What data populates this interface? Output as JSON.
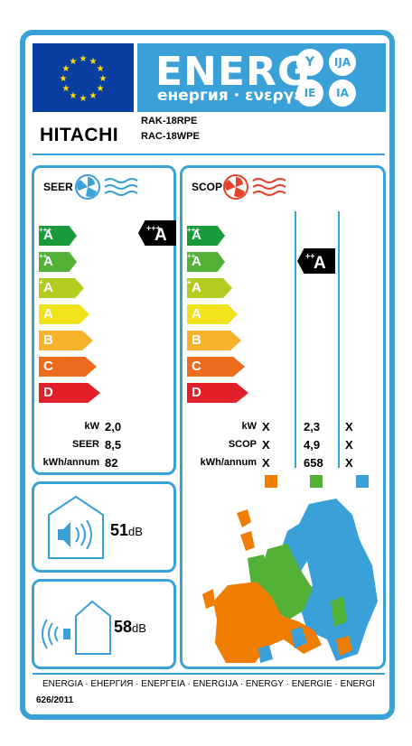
{
  "header": {
    "energy_word": "ENERG",
    "energy_subtitle": "енергия · ενεργεια",
    "language_letters": [
      "Y",
      "IJA",
      "IE",
      "IA"
    ],
    "brand": "HITACHI",
    "models": [
      "RAK-18RPE",
      "RAC-18WPE"
    ]
  },
  "seer": {
    "title": "SEER",
    "classes": [
      {
        "letter": "A",
        "sup": "+++",
        "color": "#1a9b3a"
      },
      {
        "letter": "A",
        "sup": "++",
        "color": "#52b035"
      },
      {
        "letter": "A",
        "sup": "+",
        "color": "#b3cc1f"
      },
      {
        "letter": "A",
        "sup": "",
        "color": "#f2e21b"
      },
      {
        "letter": "B",
        "sup": "",
        "color": "#f5b22a"
      },
      {
        "letter": "C",
        "sup": "",
        "color": "#ec6b1d"
      },
      {
        "letter": "D",
        "sup": "",
        "color": "#e3202a"
      }
    ],
    "rating": {
      "letter": "A",
      "sup": "+++"
    },
    "rows": [
      {
        "label": "kW",
        "value": "2,0"
      },
      {
        "label": "SEER",
        "value": "8,5"
      },
      {
        "label": "kWh/annum",
        "value": "82"
      }
    ]
  },
  "scop": {
    "title": "SCOP",
    "classes": [
      {
        "letter": "A",
        "sup": "+++",
        "color": "#1a9b3a"
      },
      {
        "letter": "A",
        "sup": "++",
        "color": "#52b035"
      },
      {
        "letter": "A",
        "sup": "+",
        "color": "#b3cc1f"
      },
      {
        "letter": "A",
        "sup": "",
        "color": "#f2e21b"
      },
      {
        "letter": "B",
        "sup": "",
        "color": "#f5b22a"
      },
      {
        "letter": "C",
        "sup": "",
        "color": "#ec6b1d"
      },
      {
        "letter": "D",
        "sup": "",
        "color": "#e3202a"
      }
    ],
    "rating": {
      "letter": "A",
      "sup": "++"
    },
    "rows": [
      {
        "label": "kW",
        "values": [
          "X",
          "2,3",
          "X"
        ]
      },
      {
        "label": "SCOP",
        "values": [
          "X",
          "4,9",
          "X"
        ]
      },
      {
        "label": "kWh/annum",
        "values": [
          "X",
          "658",
          "X"
        ]
      }
    ],
    "climate_colors": [
      "#ef7d00",
      "#52b035",
      "#3aa0d8"
    ]
  },
  "noise": {
    "indoor": {
      "value": "51",
      "unit": "dB"
    },
    "outdoor": {
      "value": "58",
      "unit": "dB"
    }
  },
  "footer": {
    "languages": "ENERGIA · ЕНЕРГИЯ · ΕΝΕΡΓΕΙΑ · ENERGIJA · ENERGY · ENERGIE · ENERGI",
    "regulation": "626/2011"
  },
  "icons": [
    "eu-flag",
    "fan-cool-icon",
    "fan-heat-icon",
    "speaker-icon",
    "house-speaker-icon",
    "europe-map"
  ]
}
